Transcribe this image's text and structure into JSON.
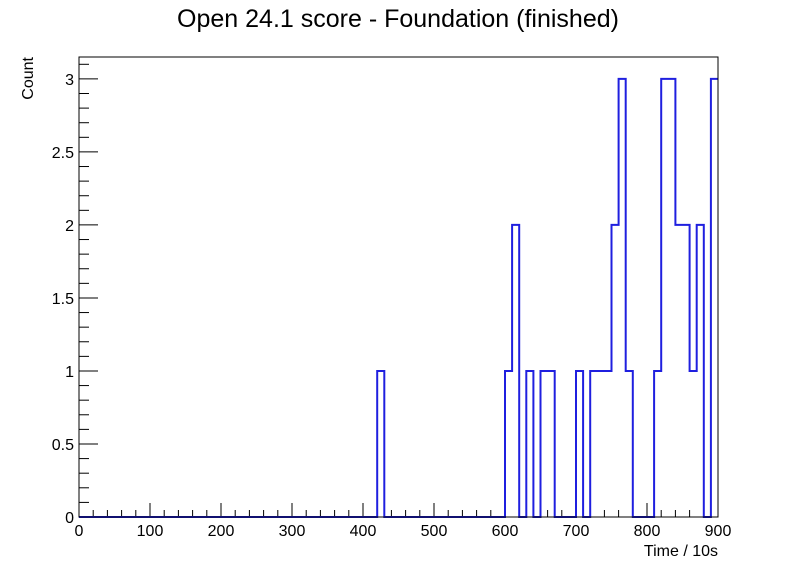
{
  "chart_data": {
    "type": "histogram",
    "title": "Open 24.1 score - Foundation (finished)",
    "xlabel": "Time / 10s",
    "ylabel": "Count",
    "xlim": [
      0,
      900
    ],
    "ylim": [
      0,
      3.15
    ],
    "bin_width": 10,
    "x_ticks": [
      0,
      100,
      200,
      300,
      400,
      500,
      600,
      700,
      800,
      900
    ],
    "y_ticks": [
      0,
      0.5,
      1,
      1.5,
      2,
      2.5,
      3
    ],
    "x_tick_labels": [
      "0",
      "100",
      "200",
      "300",
      "400",
      "500",
      "600",
      "700",
      "800",
      "900"
    ],
    "y_tick_labels": [
      "0",
      "0.5",
      "1",
      "1.5",
      "2",
      "2.5",
      "3"
    ],
    "series_color": "#1f1fdf",
    "bins": [
      {
        "x": 420,
        "count": 1
      },
      {
        "x": 600,
        "count": 1
      },
      {
        "x": 610,
        "count": 2
      },
      {
        "x": 630,
        "count": 1
      },
      {
        "x": 650,
        "count": 1
      },
      {
        "x": 660,
        "count": 1
      },
      {
        "x": 700,
        "count": 1
      },
      {
        "x": 720,
        "count": 1
      },
      {
        "x": 730,
        "count": 1
      },
      {
        "x": 740,
        "count": 1
      },
      {
        "x": 750,
        "count": 2
      },
      {
        "x": 760,
        "count": 3
      },
      {
        "x": 770,
        "count": 1
      },
      {
        "x": 810,
        "count": 1
      },
      {
        "x": 820,
        "count": 3
      },
      {
        "x": 830,
        "count": 3
      },
      {
        "x": 840,
        "count": 2
      },
      {
        "x": 850,
        "count": 2
      },
      {
        "x": 860,
        "count": 1
      },
      {
        "x": 870,
        "count": 2
      },
      {
        "x": 890,
        "count": 3
      }
    ]
  }
}
